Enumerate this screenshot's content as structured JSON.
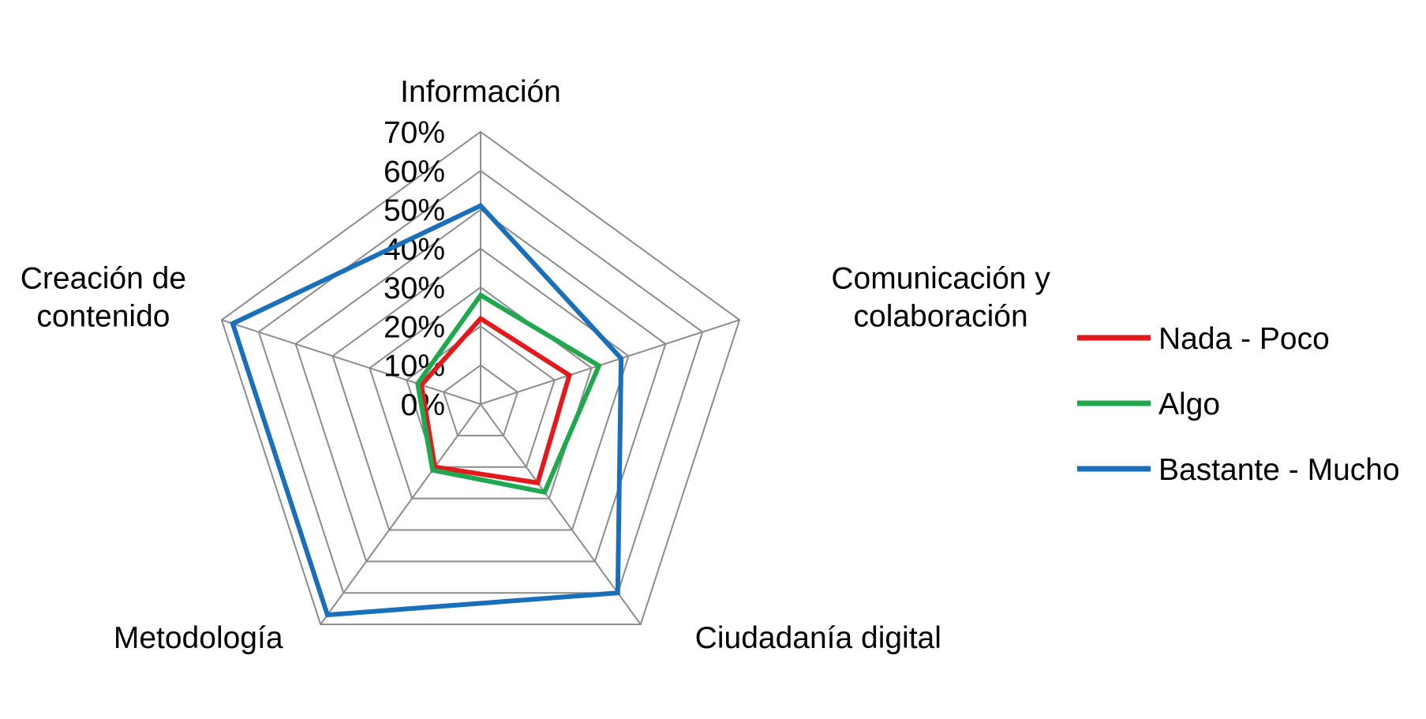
{
  "chart_data": {
    "type": "radar",
    "categories": [
      "Información",
      "Comunicación y colaboración",
      "Ciudadanía digital",
      "Metodología",
      "Creación de contenido"
    ],
    "category_label_lines": [
      [
        "Información"
      ],
      [
        "Comunicación y",
        "colaboración"
      ],
      [
        "Ciudadanía digital"
      ],
      [
        "Metodología"
      ],
      [
        "Creación de",
        "contenido"
      ]
    ],
    "axis": {
      "min": 0,
      "max": 70,
      "step": 10,
      "tick_labels": [
        "0%",
        "10%",
        "20%",
        "30%",
        "40%",
        "50%",
        "60%",
        "70%"
      ]
    },
    "series": [
      {
        "name": "Nada - Poco",
        "color": "#e31a1c",
        "values": [
          22,
          24,
          25,
          20,
          16
        ]
      },
      {
        "name": "Algo",
        "color": "#1fa84f",
        "values": [
          28,
          32,
          28,
          21,
          17
        ]
      },
      {
        "name": "Bastante - Mucho",
        "color": "#1a6fba",
        "values": [
          51,
          38,
          60,
          67,
          67
        ]
      }
    ],
    "legend_position": "right"
  }
}
